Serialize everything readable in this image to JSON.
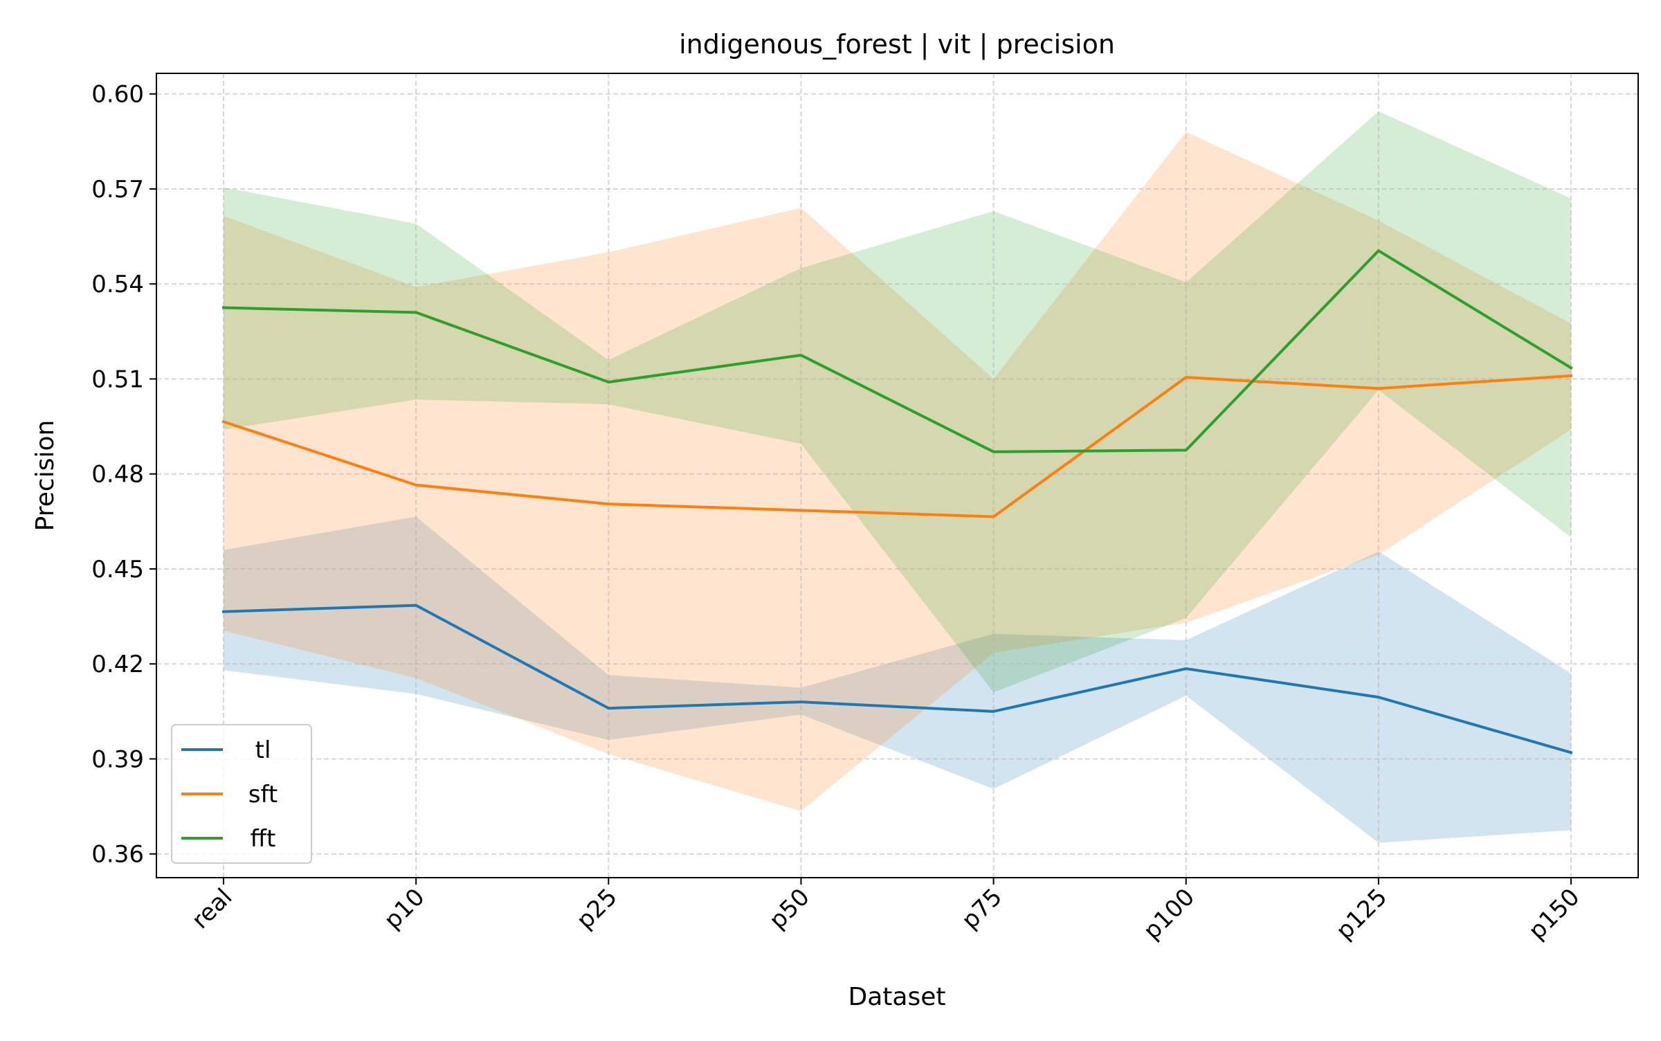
{
  "chart_data": {
    "type": "line",
    "title": "indigenous_forest | vit | precision",
    "xlabel": "Dataset",
    "ylabel": "Precision",
    "categories": [
      "real",
      "p10",
      "p25",
      "p50",
      "p75",
      "p100",
      "p125",
      "p150"
    ],
    "ylim": [
      0.3525,
      0.6065
    ],
    "yticks": [
      0.36,
      0.39,
      0.42,
      0.45,
      0.48,
      0.51,
      0.54,
      0.57,
      0.6
    ],
    "ytick_labels": [
      "0.36",
      "0.39",
      "0.42",
      "0.45",
      "0.48",
      "0.51",
      "0.54",
      "0.57",
      "0.60"
    ],
    "grid": true,
    "legend_position": "lower-left",
    "series": [
      {
        "name": "tl",
        "color": "#1f77b4",
        "values": [
          0.4365,
          0.4385,
          0.406,
          0.408,
          0.405,
          0.4185,
          0.4095,
          0.392
        ],
        "upper": [
          0.456,
          0.4665,
          0.4165,
          0.4125,
          0.4295,
          0.4275,
          0.4555,
          0.417
        ],
        "lower": [
          0.418,
          0.4105,
          0.396,
          0.404,
          0.3805,
          0.41,
          0.3635,
          0.3675
        ]
      },
      {
        "name": "sft",
        "color": "#ff7f0e",
        "values": [
          0.4965,
          0.4765,
          0.4705,
          0.4685,
          0.4665,
          0.5105,
          0.507,
          0.511
        ],
        "upper": [
          0.5615,
          0.539,
          0.55,
          0.564,
          0.51,
          0.588,
          0.56,
          0.5275
        ],
        "lower": [
          0.4305,
          0.4155,
          0.3915,
          0.3735,
          0.4235,
          0.433,
          0.4545,
          0.494
        ]
      },
      {
        "name": "fft",
        "color": "#2ca02c",
        "values": [
          0.5325,
          0.531,
          0.509,
          0.5175,
          0.487,
          0.4875,
          0.5505,
          0.5135
        ],
        "upper": [
          0.5705,
          0.559,
          0.516,
          0.545,
          0.563,
          0.5405,
          0.5945,
          0.567
        ],
        "lower": [
          0.494,
          0.5035,
          0.502,
          0.4895,
          0.411,
          0.4345,
          0.5065,
          0.46
        ]
      }
    ]
  }
}
